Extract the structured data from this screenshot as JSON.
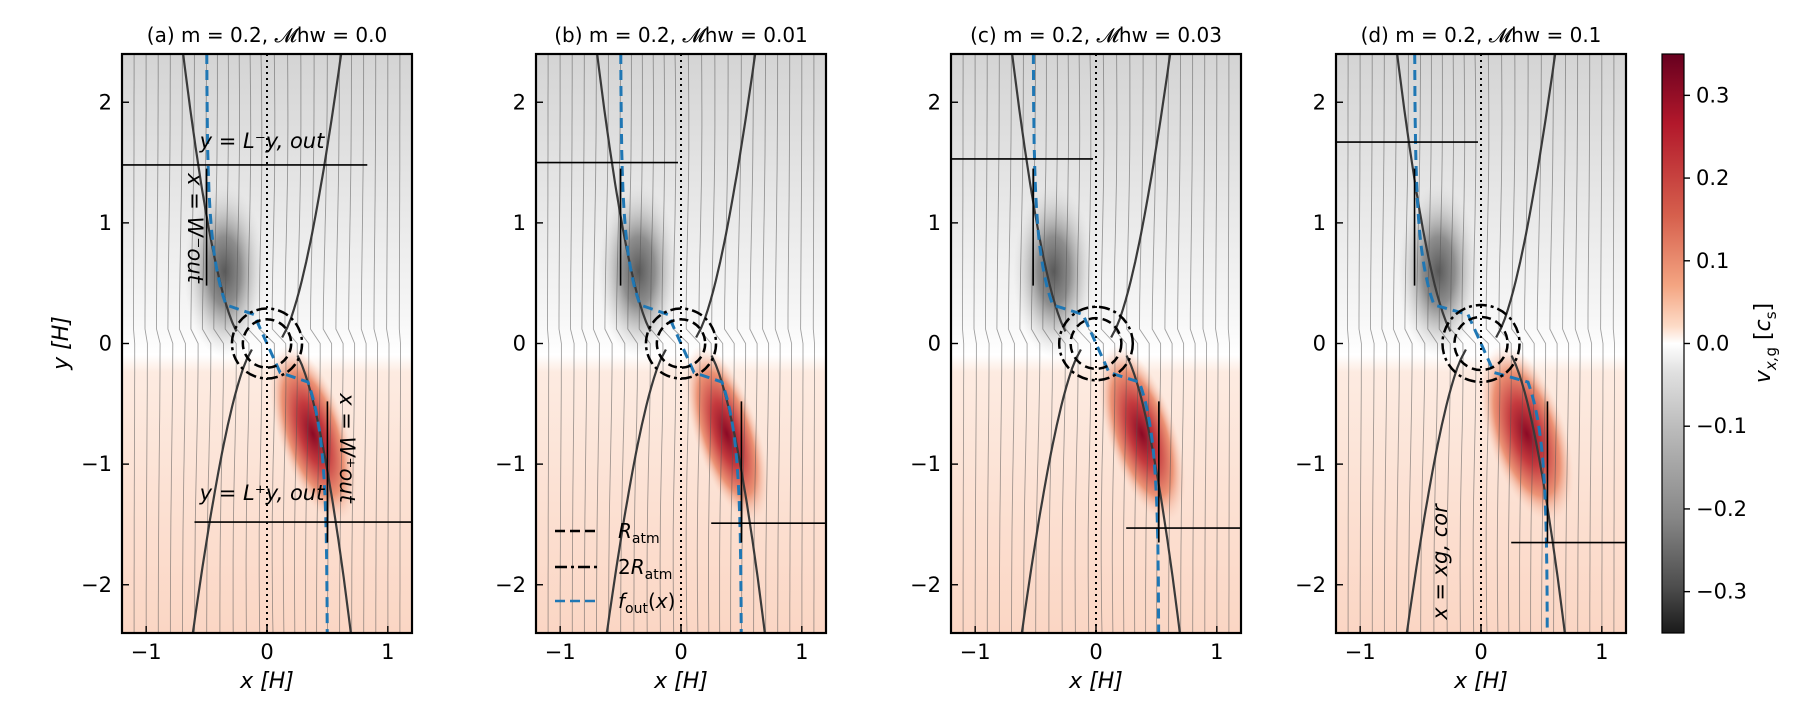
{
  "chart_data": {
    "type": "heatmap",
    "figure_description_ylabel": "y [H]",
    "xlabel": "x [H]",
    "ylabel": "y [H]",
    "xlim": [
      -1.2,
      1.2
    ],
    "ylim": [
      -2.4,
      2.4
    ],
    "xticks": [
      -1,
      0,
      1
    ],
    "xtick_labels": [
      "−1",
      "0",
      "1"
    ],
    "yticks": [
      -2,
      -1,
      0,
      1,
      2
    ],
    "ytick_labels": [
      "−2",
      "−1",
      "0",
      "1",
      "2"
    ],
    "colorbar": {
      "label": "v_x,g [c_s]",
      "range": [
        -0.35,
        0.35
      ],
      "ticks": [
        0.3,
        0.2,
        0.1,
        0.0,
        -0.1,
        -0.2,
        -0.3
      ],
      "tick_labels": [
        "0.3",
        "0.2",
        "0.1",
        "0.0",
        "−0.1",
        "−0.2",
        "−0.3"
      ],
      "colormap": "RdGy_r"
    },
    "legend": {
      "location": "lower-left of panel b",
      "entries": [
        {
          "label": "R_atm",
          "style": "dashed",
          "color": "#000000"
        },
        {
          "label": "2R_atm",
          "style": "dashdot",
          "color": "#000000"
        },
        {
          "label": "f_out(x)",
          "style": "dashed",
          "color": "#1f77b4"
        }
      ]
    },
    "panels": [
      {
        "id": "a",
        "title": "(a) m = 0.2,  𝓜hw = 0.0",
        "m": 0.2,
        "M_hw": 0.0,
        "L_y_out_minus": 1.48,
        "L_y_out_plus": -1.48,
        "W_out_minus": -0.5,
        "W_out_plus": 0.5,
        "R_atm": 0.2,
        "red_max": 0.3
      },
      {
        "id": "b",
        "title": "(b) m = 0.2,  𝓜hw = 0.01",
        "m": 0.2,
        "M_hw": 0.01,
        "L_y_out_minus": 1.5,
        "L_y_out_plus": -1.49,
        "W_out_minus": -0.5,
        "W_out_plus": 0.5,
        "R_atm": 0.2,
        "red_max": 0.28
      },
      {
        "id": "c",
        "title": "(c) m = 0.2,  𝓜hw = 0.03",
        "m": 0.2,
        "M_hw": 0.03,
        "L_y_out_minus": 1.53,
        "L_y_out_plus": -1.53,
        "W_out_minus": -0.52,
        "W_out_plus": 0.52,
        "R_atm": 0.21,
        "red_max": 0.3
      },
      {
        "id": "d",
        "title": "(d) m = 0.2,  𝓜hw = 0.1",
        "m": 0.2,
        "M_hw": 0.1,
        "L_y_out_minus": 1.67,
        "L_y_out_plus": -1.65,
        "W_out_minus": -0.55,
        "W_out_plus": 0.55,
        "R_atm": 0.22,
        "red_max": 0.34
      }
    ],
    "annotations": {
      "y_minus": "y = L⁻y, out",
      "y_plus": "y = L⁺y, out",
      "x_minus": "x = W⁻out",
      "x_plus": "x = W⁺out",
      "x_cor": "x = xg, cor"
    },
    "colors": {
      "red_dark": "#67001f",
      "red_light": "#fddbc7",
      "gray_dark": "#1a1a1a",
      "gray_light": "#e0e0e0",
      "fout": "#1f77b4",
      "streamline": "#555555"
    }
  }
}
